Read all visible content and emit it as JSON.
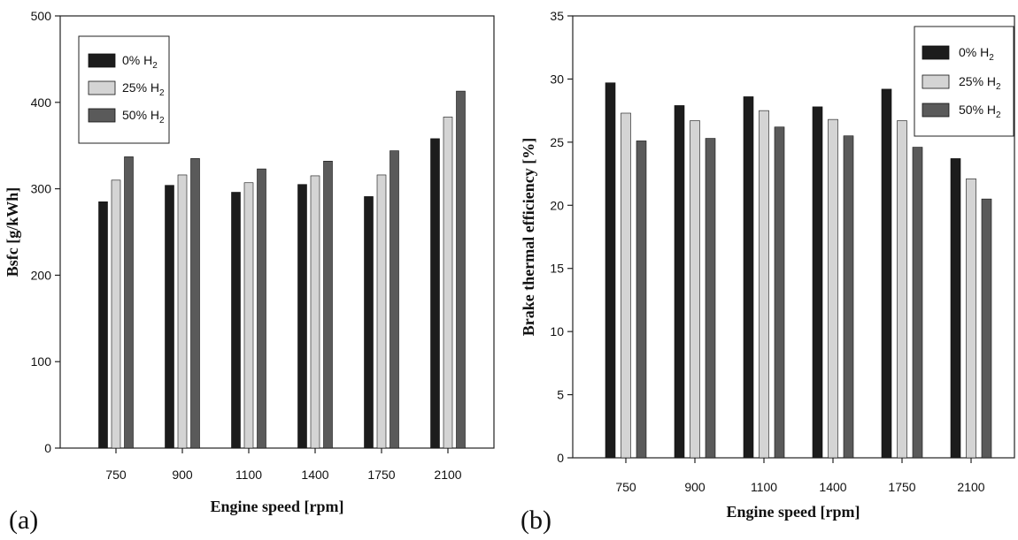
{
  "chart_data": [
    {
      "panel_label": "(a)",
      "type": "bar",
      "xlabel": "Engine speed [rpm]",
      "ylabel": "Bsfc [g/kWh]",
      "categories": [
        "750",
        "900",
        "1100",
        "1400",
        "1750",
        "2100"
      ],
      "ylim": [
        0,
        500
      ],
      "yticks": [
        "0",
        "100",
        "200",
        "300",
        "400",
        "500"
      ],
      "legend_position": "top-left",
      "grid": false,
      "series": [
        {
          "name": "0% H",
          "name_sub": "2",
          "color": "#1c1c1c",
          "values": [
            285,
            304,
            296,
            305,
            291,
            358
          ]
        },
        {
          "name": "25% H",
          "name_sub": "2",
          "color": "#d4d4d4",
          "values": [
            310,
            316,
            307,
            315,
            316,
            383
          ]
        },
        {
          "name": "50% H",
          "name_sub": "2",
          "color": "#5a5a5a",
          "values": [
            337,
            335,
            323,
            332,
            344,
            413
          ]
        }
      ]
    },
    {
      "panel_label": "(b)",
      "type": "bar",
      "xlabel": "Engine speed [rpm]",
      "ylabel": "Brake thermal efficiency [%]",
      "categories": [
        "750",
        "900",
        "1100",
        "1400",
        "1750",
        "2100"
      ],
      "ylim": [
        0,
        35
      ],
      "yticks": [
        "0",
        "5",
        "10",
        "15",
        "20",
        "25",
        "30",
        "35"
      ],
      "legend_position": "top-right",
      "grid": false,
      "series": [
        {
          "name": "0% H",
          "name_sub": "2",
          "color": "#1c1c1c",
          "values": [
            29.7,
            27.9,
            28.6,
            27.8,
            29.2,
            23.7
          ]
        },
        {
          "name": "25% H",
          "name_sub": "2",
          "color": "#d4d4d4",
          "values": [
            27.3,
            26.7,
            27.5,
            26.8,
            26.7,
            22.1
          ]
        },
        {
          "name": "50% H",
          "name_sub": "2",
          "color": "#5a5a5a",
          "values": [
            25.1,
            25.3,
            26.2,
            25.5,
            24.6,
            20.5
          ]
        }
      ]
    }
  ]
}
